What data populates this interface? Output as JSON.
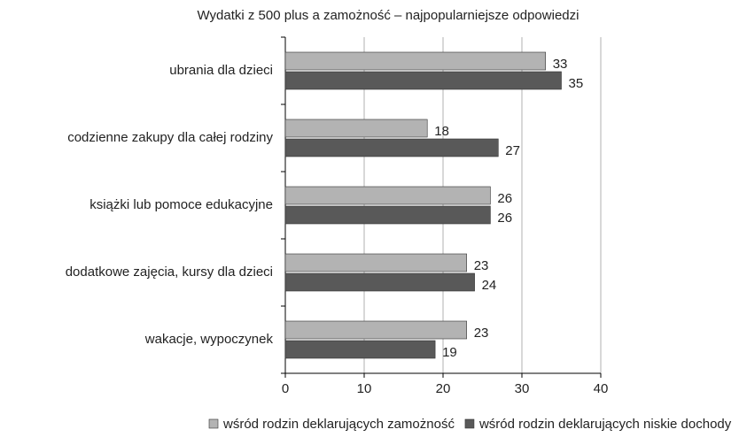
{
  "chart_data": {
    "type": "bar",
    "orientation": "horizontal",
    "title": "Wydatki z 500 plus a zamożność – najpopularniejsze odpowiedzi",
    "categories": [
      "ubrania dla dzieci",
      "codzienne zakupy dla całej rodziny",
      "książki lub pomoce edukacyjne",
      "dodatkowe zajęcia, kursy dla dzieci",
      "wakacje, wypoczynek"
    ],
    "series": [
      {
        "name": "wśród rodzin deklarujących zamożność",
        "color": "#b3b3b3",
        "values": [
          33,
          18,
          26,
          23,
          23
        ]
      },
      {
        "name": "wśród rodzin deklarujących niskie dochody",
        "color": "#595959",
        "values": [
          35,
          27,
          26,
          24,
          19
        ]
      }
    ],
    "xlim": [
      0,
      40
    ],
    "xticks": [
      0,
      10,
      20,
      30,
      40
    ],
    "grid": true,
    "legend": "bottom"
  }
}
